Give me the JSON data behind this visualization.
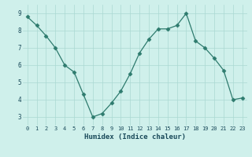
{
  "x": [
    0,
    1,
    2,
    3,
    4,
    5,
    6,
    7,
    8,
    9,
    10,
    11,
    12,
    13,
    14,
    15,
    16,
    17,
    18,
    19,
    20,
    21,
    22,
    23
  ],
  "y": [
    8.8,
    8.3,
    7.7,
    7.0,
    6.0,
    5.6,
    4.3,
    3.0,
    3.2,
    3.8,
    4.5,
    5.5,
    6.7,
    7.5,
    8.1,
    8.1,
    8.3,
    9.0,
    7.4,
    7.0,
    6.4,
    5.7,
    4.0,
    4.1
  ],
  "line_color": "#2e7b6e",
  "marker": "D",
  "marker_size": 2.5,
  "bg_color": "#cff0eb",
  "grid_color": "#aad8d2",
  "xlabel": "Humidex (Indice chaleur)",
  "xlim": [
    -0.5,
    23.5
  ],
  "ylim": [
    2.5,
    9.5
  ],
  "yticks": [
    3,
    4,
    5,
    6,
    7,
    8,
    9
  ],
  "xticks": [
    0,
    1,
    2,
    3,
    4,
    5,
    6,
    7,
    8,
    9,
    10,
    11,
    12,
    13,
    14,
    15,
    16,
    17,
    18,
    19,
    20,
    21,
    22,
    23
  ]
}
